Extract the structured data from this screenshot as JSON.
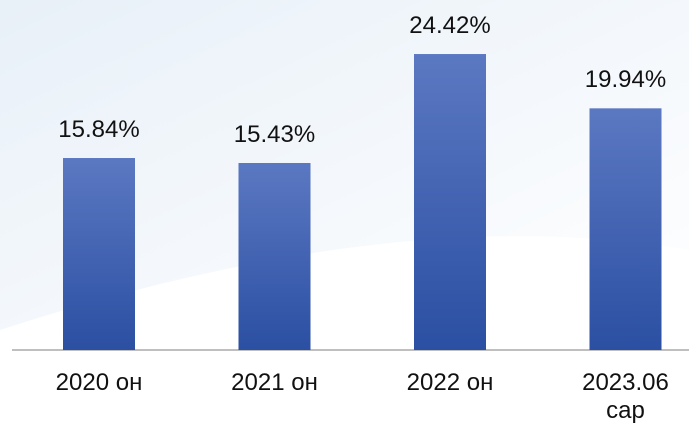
{
  "chart_data": {
    "type": "bar",
    "categories": [
      "2020 он",
      "2021 он",
      "2022 он",
      "2023.06 сар"
    ],
    "values": [
      15.84,
      15.43,
      24.42,
      19.94
    ],
    "value_labels": [
      "15.84%",
      "15.43%",
      "24.42%",
      "19.94%"
    ],
    "color": "#3a5cb0"
  }
}
